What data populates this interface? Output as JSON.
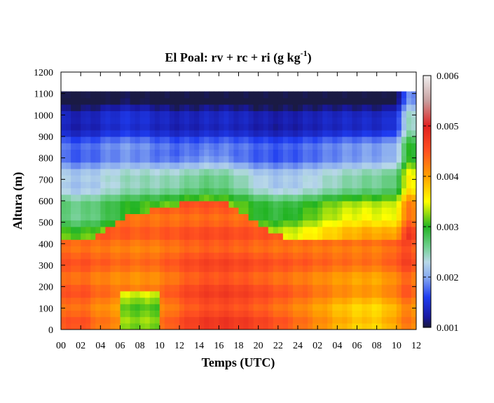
{
  "chart_data": {
    "type": "heatmap",
    "title": "El Poal: rv + rc + ri (g kg",
    "title_superscript": "-1",
    "title_suffix": ")",
    "xlabel": "Temps (UTC)",
    "ylabel": "Altura (m)",
    "x_tick_labels": [
      "00",
      "02",
      "04",
      "06",
      "08",
      "10",
      "12",
      "14",
      "16",
      "18",
      "20",
      "22",
      "24",
      "02",
      "04",
      "06",
      "08",
      "10",
      "12"
    ],
    "xlim_hours": [
      0,
      36
    ],
    "ylim": [
      0,
      1200
    ],
    "y_ticks": [
      0,
      100,
      200,
      300,
      400,
      500,
      600,
      700,
      800,
      900,
      1000,
      1100,
      1200
    ],
    "data_top_m": 1110,
    "colorbar": {
      "range": [
        0.001,
        0.006
      ],
      "ticks": [
        "0.001",
        "0.002",
        "0.003",
        "0.004",
        "0.005",
        "0.006"
      ],
      "stops": [
        {
          "v": 0.001,
          "color": "#1a1a3a"
        },
        {
          "v": 0.0012,
          "color": "#1818a0"
        },
        {
          "v": 0.0016,
          "color": "#1e3cf0"
        },
        {
          "v": 0.002,
          "color": "#88aaf0"
        },
        {
          "v": 0.0023,
          "color": "#b8d8e8"
        },
        {
          "v": 0.0026,
          "color": "#70d090"
        },
        {
          "v": 0.003,
          "color": "#22b422"
        },
        {
          "v": 0.0035,
          "color": "#ffff00"
        },
        {
          "v": 0.004,
          "color": "#ffa000"
        },
        {
          "v": 0.0045,
          "color": "#ff5020"
        },
        {
          "v": 0.005,
          "color": "#e02020"
        },
        {
          "v": 0.0055,
          "color": "#c8a0a0"
        },
        {
          "v": 0.006,
          "color": "#f0f0f0"
        }
      ]
    },
    "grid": false,
    "legend": "colorbar-right"
  }
}
